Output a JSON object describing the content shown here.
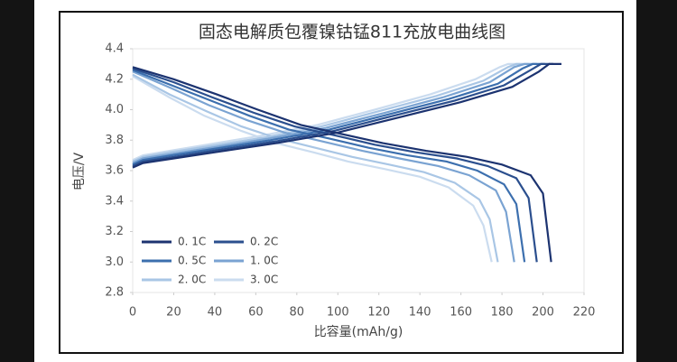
{
  "chart_data": {
    "type": "line",
    "title": "固态电解质包覆镍钴锰811充放电曲线图",
    "x_label": "比容量(mAh/g)",
    "y_label": "电压/V",
    "xlim": [
      0,
      220
    ],
    "xticks": [
      0,
      20,
      40,
      60,
      80,
      100,
      120,
      140,
      160,
      180,
      200,
      220
    ],
    "ylim": [
      2.8,
      4.4
    ],
    "yticks": [
      2.8,
      {
        "value": 3,
        "label": "3.0"
      },
      3.2,
      3.4,
      3.6,
      3.8,
      {
        "value": 4,
        "label": "4.0"
      },
      4.2,
      4.4
    ],
    "legend": "lower left",
    "series": [
      {
        "name": "0. 1C",
        "color": "#1c3370",
        "charge": {
          "x": [
            0,
            5,
            20,
            40,
            70,
            100,
            130,
            160,
            185,
            198,
            203,
            209
          ],
          "values": [
            3.62,
            3.65,
            3.68,
            3.72,
            3.78,
            3.85,
            3.95,
            4.05,
            4.15,
            4.25,
            4.3,
            4.3
          ]
        },
        "discharge": {
          "x": [
            0,
            20,
            41,
            61,
            82,
            102,
            122,
            143,
            163,
            180,
            194,
            200,
            204
          ],
          "values": [
            4.28,
            4.2,
            4.1,
            4.0,
            3.9,
            3.84,
            3.78,
            3.73,
            3.69,
            3.64,
            3.57,
            3.45,
            3.0
          ]
        }
      },
      {
        "name": "0. 2C",
        "color": "#2b4f8e",
        "charge": {
          "x": [
            0,
            5,
            20,
            39,
            69,
            98,
            127,
            157,
            181,
            194,
            199,
            205
          ],
          "values": [
            3.63,
            3.66,
            3.69,
            3.73,
            3.79,
            3.86,
            3.96,
            4.06,
            4.16,
            4.26,
            4.3,
            4.3
          ]
        },
        "discharge": {
          "x": [
            0,
            20,
            39,
            59,
            79,
            99,
            118,
            138,
            158,
            173,
            187,
            193,
            197
          ],
          "values": [
            4.27,
            4.18,
            4.08,
            3.98,
            3.89,
            3.83,
            3.77,
            3.72,
            3.68,
            3.63,
            3.55,
            3.42,
            3.0
          ]
        }
      },
      {
        "name": "0. 5C",
        "color": "#3c6fae",
        "charge": {
          "x": [
            0,
            5,
            19,
            38,
            67,
            96,
            125,
            154,
            178,
            190,
            195,
            201
          ],
          "values": [
            3.64,
            3.67,
            3.7,
            3.74,
            3.8,
            3.87,
            3.97,
            4.07,
            4.17,
            4.27,
            4.3,
            4.3
          ]
        },
        "discharge": {
          "x": [
            0,
            19,
            38,
            57,
            76,
            96,
            115,
            134,
            153,
            168,
            181,
            187,
            191
          ],
          "values": [
            4.26,
            4.16,
            4.06,
            3.96,
            3.87,
            3.81,
            3.75,
            3.7,
            3.66,
            3.6,
            3.51,
            3.38,
            3.0
          ]
        }
      },
      {
        "name": "1. 0C",
        "color": "#7aa3d2",
        "charge": {
          "x": [
            0,
            5,
            19,
            38,
            66,
            94,
            123,
            151,
            174,
            186,
            191,
            197
          ],
          "values": [
            3.65,
            3.68,
            3.71,
            3.75,
            3.81,
            3.88,
            3.98,
            4.08,
            4.18,
            4.28,
            4.3,
            4.3
          ]
        },
        "discharge": {
          "x": [
            0,
            19,
            37,
            56,
            74,
            93,
            112,
            130,
            149,
            164,
            177,
            182,
            186
          ],
          "values": [
            4.25,
            4.14,
            4.03,
            3.93,
            3.85,
            3.79,
            3.73,
            3.68,
            3.63,
            3.57,
            3.47,
            3.33,
            3.0
          ]
        }
      },
      {
        "name": "2. 0C",
        "color": "#a9c6e5",
        "charge": {
          "x": [
            0,
            5,
            18,
            37,
            65,
            92,
            120,
            148,
            171,
            183,
            187,
            193
          ],
          "values": [
            3.66,
            3.69,
            3.72,
            3.76,
            3.82,
            3.89,
            3.99,
            4.09,
            4.19,
            4.28,
            4.3,
            4.3
          ]
        },
        "discharge": {
          "x": [
            0,
            18,
            36,
            53,
            71,
            89,
            107,
            125,
            142,
            157,
            169,
            174,
            178
          ],
          "values": [
            4.23,
            4.1,
            3.99,
            3.89,
            3.81,
            3.75,
            3.69,
            3.64,
            3.59,
            3.52,
            3.41,
            3.28,
            3.0
          ]
        }
      },
      {
        "name": "3. 0C",
        "color": "#cbdcef",
        "charge": {
          "x": [
            0,
            5,
            18,
            36,
            63,
            90,
            118,
            145,
            167,
            179,
            183,
            189
          ],
          "values": [
            3.67,
            3.7,
            3.73,
            3.77,
            3.83,
            3.9,
            4.0,
            4.1,
            4.2,
            4.28,
            4.3,
            4.3
          ]
        },
        "discharge": {
          "x": [
            0,
            18,
            35,
            53,
            70,
            88,
            105,
            123,
            140,
            154,
            166,
            171,
            175
          ],
          "values": [
            4.22,
            4.08,
            3.96,
            3.86,
            3.78,
            3.72,
            3.66,
            3.61,
            3.56,
            3.49,
            3.37,
            3.24,
            3.0
          ]
        }
      }
    ]
  }
}
